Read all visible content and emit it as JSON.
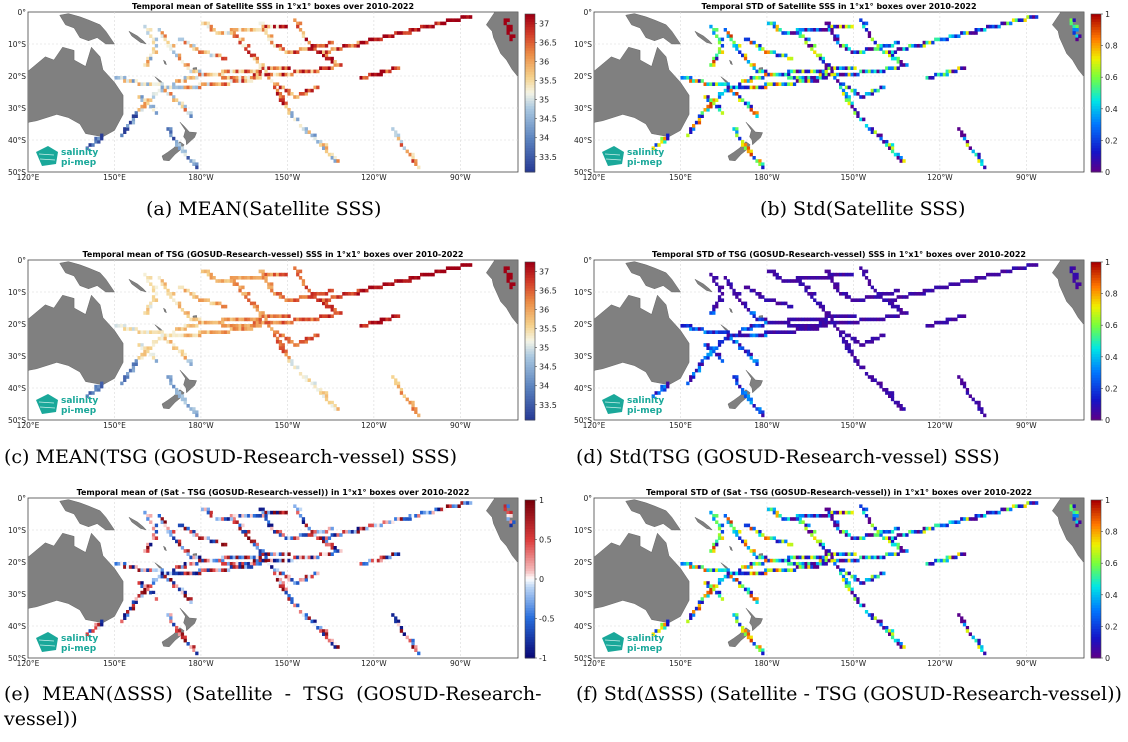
{
  "panels": [
    {
      "id": "a",
      "map_title": "Temporal mean of Satellite SSS in 1°x1° boxes over 2010-2022",
      "caption": "(a) MEAN(Satellite SSS)",
      "colormap": "diverging_sss",
      "colorbar_ticks": [
        "37",
        "36.5",
        "36",
        "35.5",
        "35",
        "34.5",
        "34",
        "33.5"
      ],
      "tracks_style": "mean"
    },
    {
      "id": "b",
      "map_title": "Temporal STD of Satellite SSS in 1°x1° boxes over 2010-2022",
      "caption": "(b) Std(Satellite SSS)",
      "colormap": "jet",
      "colorbar_ticks": [
        "1",
        "0.8",
        "0.6",
        "0.4",
        "0.2",
        "0"
      ],
      "tracks_style": "std_high"
    },
    {
      "id": "c",
      "map_title": "Temporal mean of TSG (GOSUD-Research-vessel) SSS in 1°x1° boxes over 2010-2022",
      "caption": "(c) MEAN(TSG (GOSUD-Research-vessel) SSS)",
      "colormap": "diverging_sss",
      "colorbar_ticks": [
        "37",
        "36.5",
        "36",
        "35.5",
        "35",
        "34.5",
        "34",
        "33.5"
      ],
      "tracks_style": "mean_smooth"
    },
    {
      "id": "d",
      "map_title": "Temporal STD of TSG (GOSUD-Research-vessel) SSS in 1°x1° boxes over 2010-2022",
      "caption": "(d) Std(TSG (GOSUD-Research-vessel) SSS)",
      "colormap": "jet",
      "colorbar_ticks": [
        "1",
        "0.8",
        "0.6",
        "0.4",
        "0.2",
        "0"
      ],
      "tracks_style": "std_low"
    },
    {
      "id": "e",
      "map_title": "Temporal mean of (Sat - TSG (GOSUD-Research-vessel)) in 1°x1° boxes over 2010-2022",
      "caption": "(e)  MEAN(ΔSSS)  (Satellite  -  TSG  (GOSUD-Research-vessel))",
      "colormap": "diverging_diff",
      "colorbar_ticks": [
        "1",
        "0.5",
        "0",
        "-0.5",
        "-1"
      ],
      "tracks_style": "diff"
    },
    {
      "id": "f",
      "map_title": "Temporal STD of (Sat - TSG (GOSUD-Research-vessel)) in 1°x1° boxes over 2010-2022",
      "caption": "(f) Std(ΔSSS) (Satellite - TSG (GOSUD-Research-vessel))",
      "colormap": "jet",
      "colorbar_ticks": [
        "1",
        "0.8",
        "0.6",
        "0.4",
        "0.2",
        "0"
      ],
      "tracks_style": "std_high"
    }
  ],
  "axes": {
    "lon_ticks": [
      "120°E",
      "150°E",
      "180°W",
      "150°W",
      "120°W",
      "90°W"
    ],
    "lat_ticks": [
      "0°",
      "10°S",
      "20°S",
      "30°S",
      "40°S",
      "50°S"
    ]
  },
  "logo": {
    "line1": "salinity",
    "line2": "pi-mep"
  },
  "colors": {
    "land": "#808080",
    "grid": "#d8d8d8",
    "logo": "#1aa89a"
  }
}
